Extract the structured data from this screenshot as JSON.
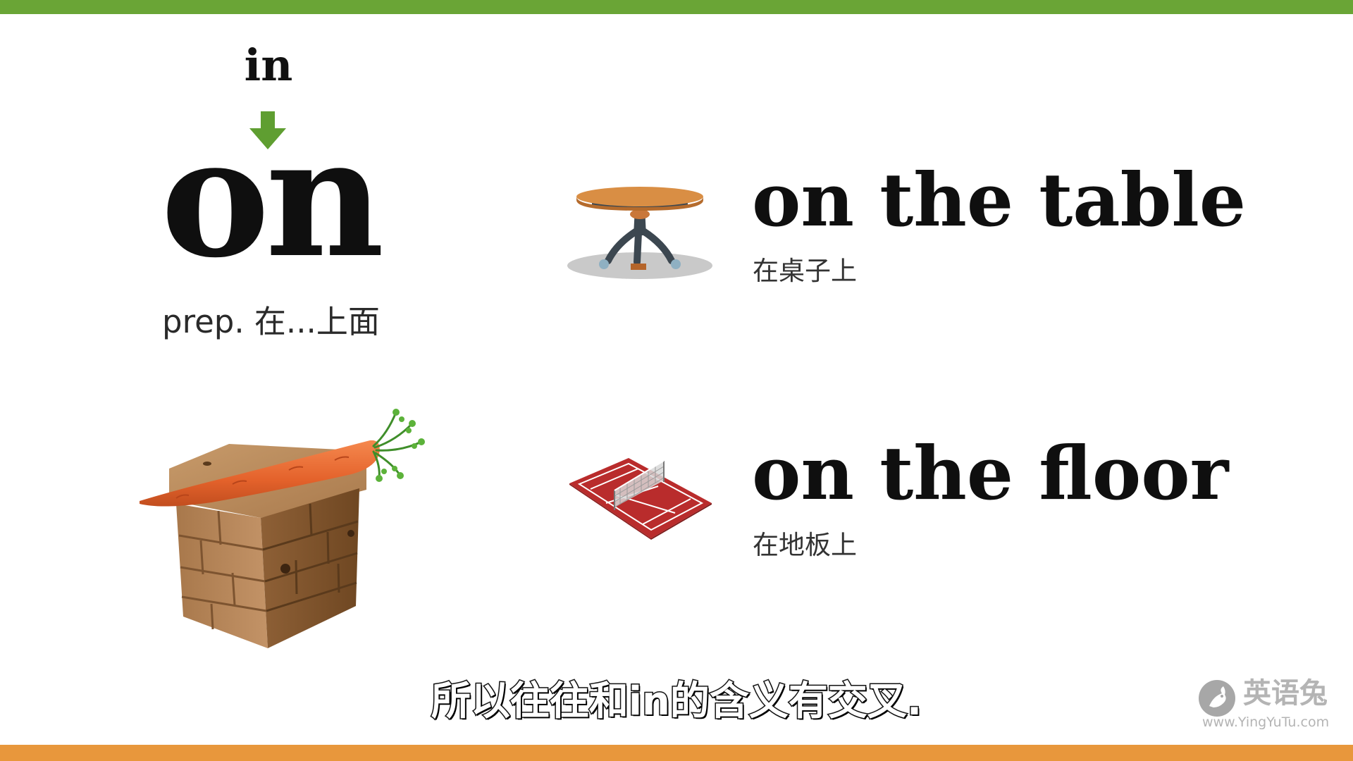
{
  "theme": {
    "top_bar_color": "#6aa536",
    "bottom_bar_color": "#e8973c",
    "arrow_color": "#5f9e31"
  },
  "lesson": {
    "hint_word": "in",
    "headword": "on",
    "definition": "prep. 在...上面"
  },
  "examples": [
    {
      "phrase": "on the table",
      "translation": "在桌子上",
      "icon": "round-table-icon"
    },
    {
      "phrase": "on the floor",
      "translation": "在地板上",
      "icon": "tennis-court-icon"
    }
  ],
  "illustration": {
    "subject": "carrot-on-wooden-block"
  },
  "subtitle": "所以往往和in的含义有交叉.",
  "watermark": {
    "brand": "英语兔",
    "url": "www.YingYuTu.com",
    "icon": "rabbit-logo-icon"
  }
}
